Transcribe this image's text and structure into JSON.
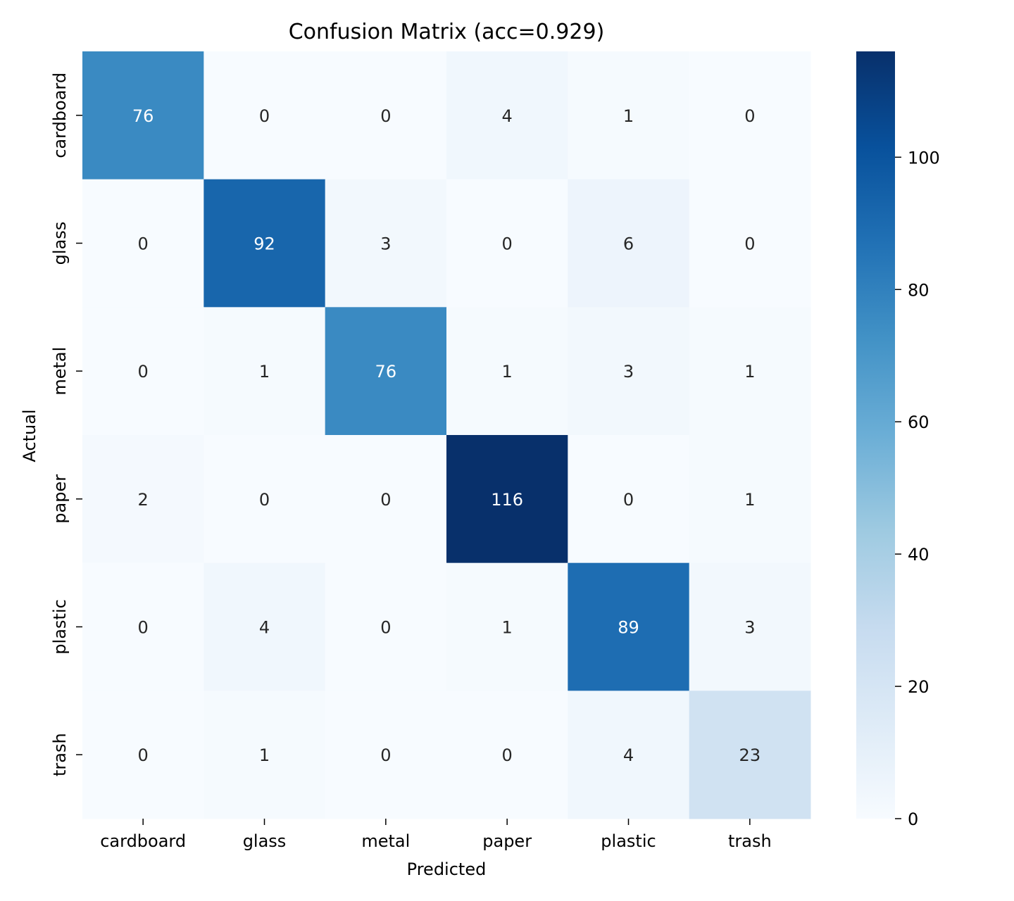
{
  "chart_data": {
    "type": "heatmap",
    "title": "Confusion Matrix (acc=0.929)",
    "xlabel": "Predicted",
    "ylabel": "Actual",
    "x_categories": [
      "cardboard",
      "glass",
      "metal",
      "paper",
      "plastic",
      "trash"
    ],
    "y_categories": [
      "cardboard",
      "glass",
      "metal",
      "paper",
      "plastic",
      "trash"
    ],
    "matrix": [
      [
        76,
        0,
        0,
        4,
        1,
        0
      ],
      [
        0,
        92,
        3,
        0,
        6,
        0
      ],
      [
        0,
        1,
        76,
        1,
        3,
        1
      ],
      [
        2,
        0,
        0,
        116,
        0,
        1
      ],
      [
        0,
        4,
        0,
        1,
        89,
        3
      ],
      [
        0,
        1,
        0,
        0,
        4,
        23
      ]
    ],
    "colormap": "Blues",
    "colorbar": {
      "min": 0,
      "max": 116,
      "ticks": [
        0,
        20,
        40,
        60,
        80,
        100
      ]
    },
    "annotation_colors": {
      "dark_text": "#262626",
      "light_text": "#ffffff"
    }
  }
}
